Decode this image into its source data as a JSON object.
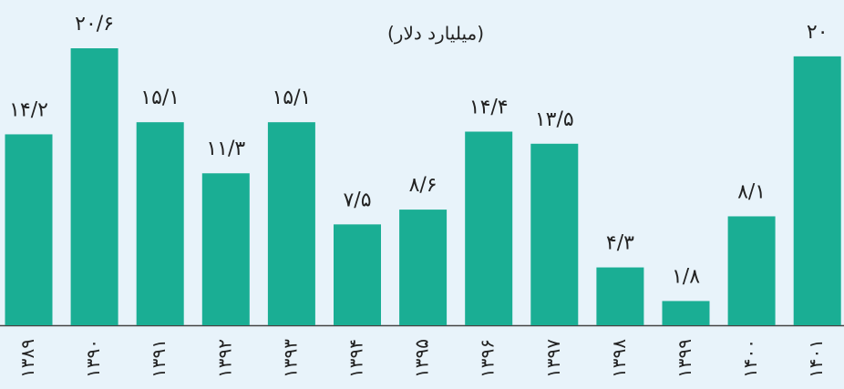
{
  "chart_data": {
    "type": "bar",
    "subtitle": "(میلیارد دلار)",
    "categories": [
      "۱۳۸۹",
      "۱۳۹۰",
      "۱۳۹۱",
      "۱۳۹۲",
      "۱۳۹۳",
      "۱۳۹۴",
      "۱۳۹۵",
      "۱۳۹۶",
      "۱۳۹۷",
      "۱۳۹۸",
      "۱۳۹۹",
      "۱۴۰۰",
      "۱۴۰۱"
    ],
    "values": [
      14.2,
      20.6,
      15.1,
      11.3,
      15.1,
      7.5,
      8.6,
      14.4,
      13.5,
      4.3,
      1.8,
      8.1,
      20
    ],
    "value_labels": [
      "۱۴/۲",
      "۲۰/۶",
      "۱۵/۱",
      "۱۱/۳",
      "۱۵/۱",
      "۷/۵",
      "۸/۶",
      "۱۴/۴",
      "۱۳/۵",
      "۴/۳",
      "۱/۸",
      "۸/۱",
      "۲۰"
    ],
    "color": "#1aae94"
  }
}
